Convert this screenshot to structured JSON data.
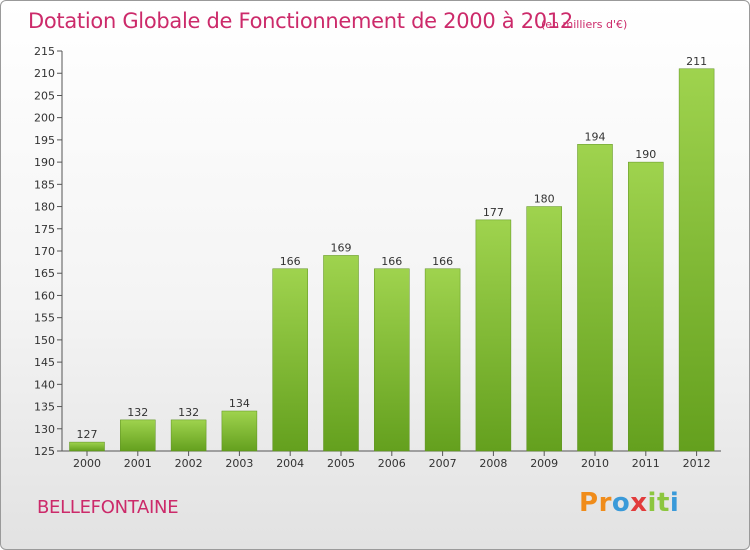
{
  "chart_data": {
    "type": "bar",
    "title": "Dotation Globale de Fonctionnement de 2000 à 2012",
    "unit_label": "(en milliers d'€)",
    "categories": [
      "2000",
      "2001",
      "2002",
      "2003",
      "2004",
      "2005",
      "2006",
      "2007",
      "2008",
      "2009",
      "2010",
      "2011",
      "2012"
    ],
    "values": [
      127,
      132,
      132,
      134,
      166,
      169,
      166,
      166,
      177,
      180,
      194,
      190,
      211
    ],
    "ylim": [
      125,
      215
    ],
    "yticks": [
      125,
      130,
      135,
      140,
      145,
      150,
      155,
      160,
      165,
      170,
      175,
      180,
      185,
      190,
      195,
      200,
      205,
      210,
      215
    ],
    "grid": false,
    "bar_color": "#8cc63f"
  },
  "commune": "BELLEFONTAINE",
  "logo": {
    "letters": [
      "P",
      "r",
      "o",
      "x",
      "i",
      "t",
      "i"
    ],
    "colors": [
      "#f08c1a",
      "#f08c1a",
      "#3a9ad9",
      "#e23b3b",
      "#8cc63f",
      "#8cc63f",
      "#3a9ad9"
    ]
  }
}
